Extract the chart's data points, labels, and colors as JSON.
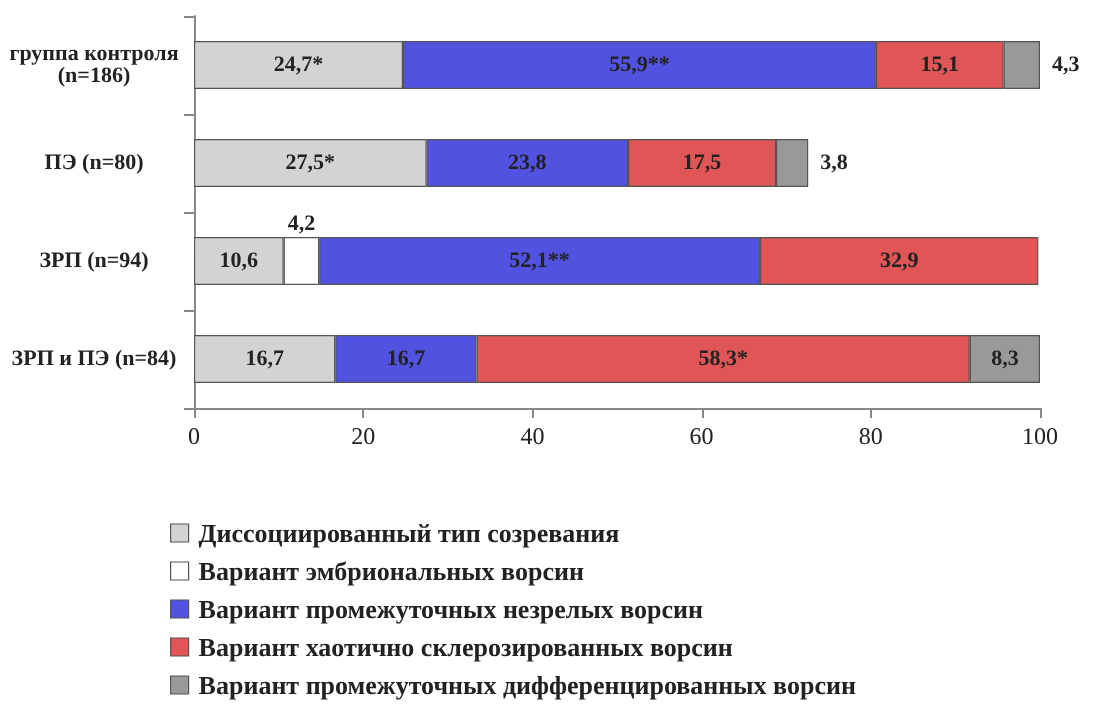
{
  "chart_data": {
    "type": "bar",
    "orientation": "horizontal",
    "stacked": true,
    "categories": [
      "группа контроля\n(n=186)",
      "ПЭ (n=80)",
      "ЗРП (n=94)",
      "ЗРП и ПЭ (n=84)"
    ],
    "series": [
      {
        "name": "Диссоциированный тип созревания",
        "color": "#d3d3d3",
        "values": [
          24.7,
          27.5,
          10.6,
          16.7
        ],
        "value_labels": [
          "24,7*",
          "27,5*",
          "10,6",
          "16,7"
        ]
      },
      {
        "name": "Вариант эмбриональных ворсин",
        "color": "#ffffff",
        "values": [
          null,
          null,
          4.2,
          null
        ],
        "value_labels": [
          null,
          null,
          "4,2",
          null
        ]
      },
      {
        "name": "Вариант промежуточных незрелых ворсин",
        "color": "#5252e0",
        "values": [
          55.9,
          23.8,
          52.1,
          16.7
        ],
        "value_labels": [
          "55,9**",
          "23,8",
          "52,1**",
          "16,7"
        ]
      },
      {
        "name": "Вариант хаотично склерозированных ворсин",
        "color": "#e05555",
        "values": [
          15.1,
          17.5,
          32.9,
          58.3
        ],
        "value_labels": [
          "15,1",
          "17,5",
          "32,9",
          "58,3*"
        ]
      },
      {
        "name": "Вариант промежуточных дифференцированных ворсин",
        "color": "#999999",
        "values": [
          4.3,
          3.8,
          null,
          8.3
        ],
        "value_labels": [
          "4,3",
          "3,8",
          null,
          "8,3"
        ]
      }
    ],
    "xlim": [
      0,
      100
    ],
    "xticks": [
      0,
      20,
      40,
      60,
      80,
      100
    ],
    "grid": false,
    "legend": "bottom"
  }
}
